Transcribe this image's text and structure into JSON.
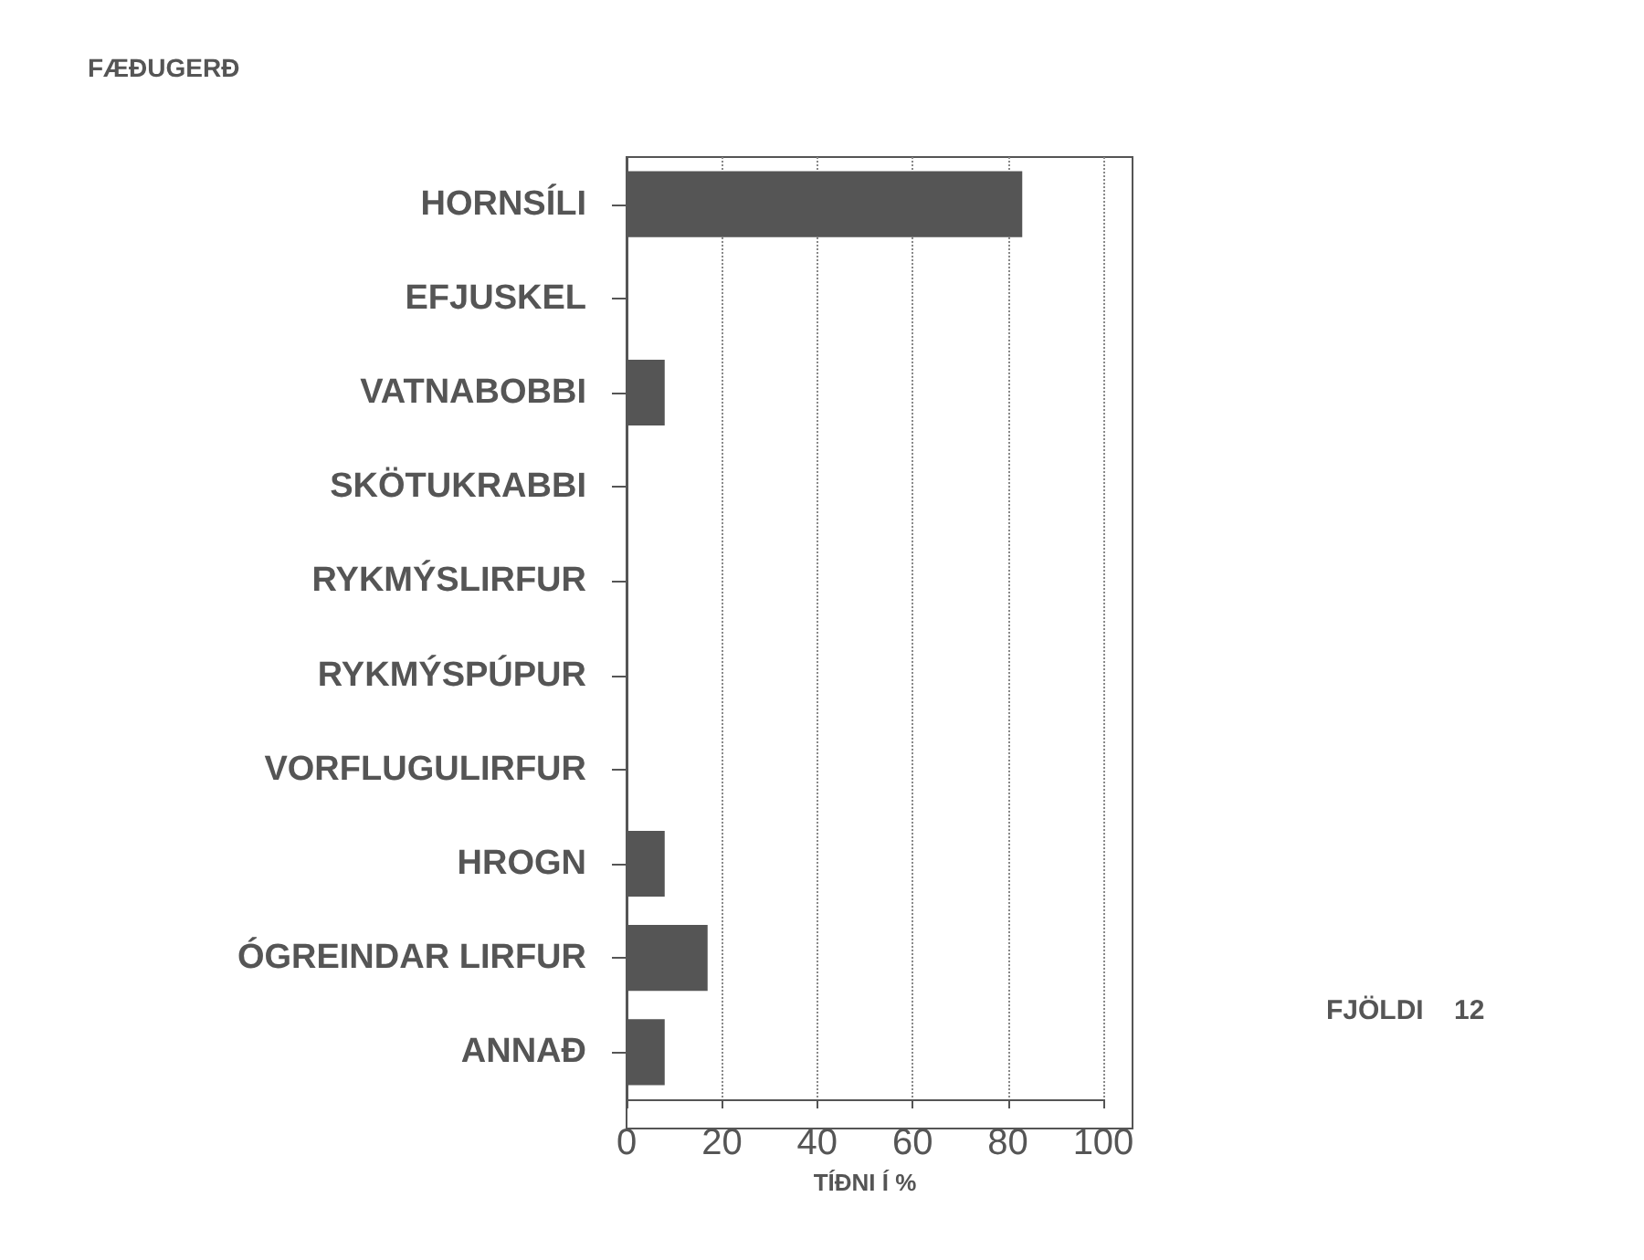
{
  "chart_data": {
    "type": "bar",
    "orientation": "horizontal",
    "ylabel": "FÆÐUGERÐ",
    "xlabel": "TÍÐNI Í %",
    "categories": [
      "HORNSÍLI",
      "EFJUSKEL",
      "VATNABOBBI",
      "SKÖTUKRABBI",
      "RYKMÝSLIRFUR",
      "RYKMÝSPÚPUR",
      "VORFLUGULIRFUR",
      "HROGN",
      "ÓGREINDAR LIRFUR",
      "ANNAÐ"
    ],
    "values": [
      83,
      0,
      8,
      0,
      0,
      0,
      0,
      8,
      17,
      8
    ],
    "color": "#555555",
    "xlim": [
      0,
      100
    ],
    "xticks": [
      0,
      20,
      40,
      60,
      80,
      100
    ],
    "grid": "x",
    "annotations": [
      "FJÖLDI    12"
    ]
  }
}
